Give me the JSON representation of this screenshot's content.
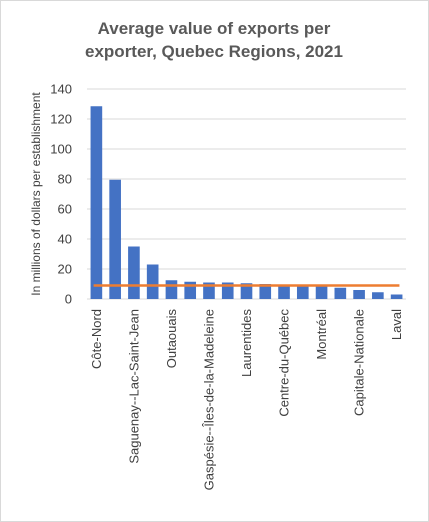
{
  "chart_data": {
    "type": "bar",
    "title_lines": [
      "Average value of exports per",
      "exporter, Quebec Regions, 2021"
    ],
    "ylabel": "In millions of dollars per establishment",
    "xlabel": "",
    "ylim": [
      0,
      140
    ],
    "yticks": [
      0,
      20,
      40,
      60,
      80,
      100,
      120,
      140
    ],
    "grid": true,
    "categories": [
      "Côte-Nord",
      "",
      "Saguenay--Lac-Saint-Jean",
      "",
      "Outaouais",
      "",
      "Gaspésie--Îles-de-la-Madeleine",
      "",
      "Laurentides",
      "",
      "Centre-du-Québec",
      "",
      "Montréal",
      "",
      "Capitale-Nationale",
      "",
      "Laval"
    ],
    "values": [
      128.5,
      79.5,
      35,
      23,
      12.5,
      11.5,
      11,
      11,
      10.5,
      10,
      9.5,
      9,
      8.5,
      7.5,
      6,
      4.5,
      3
    ],
    "reference_line": {
      "value": 9
    },
    "colors": {
      "bars": "#4472c4",
      "reference_line": "#ed7d31",
      "grid": "#d9d9d9"
    }
  }
}
